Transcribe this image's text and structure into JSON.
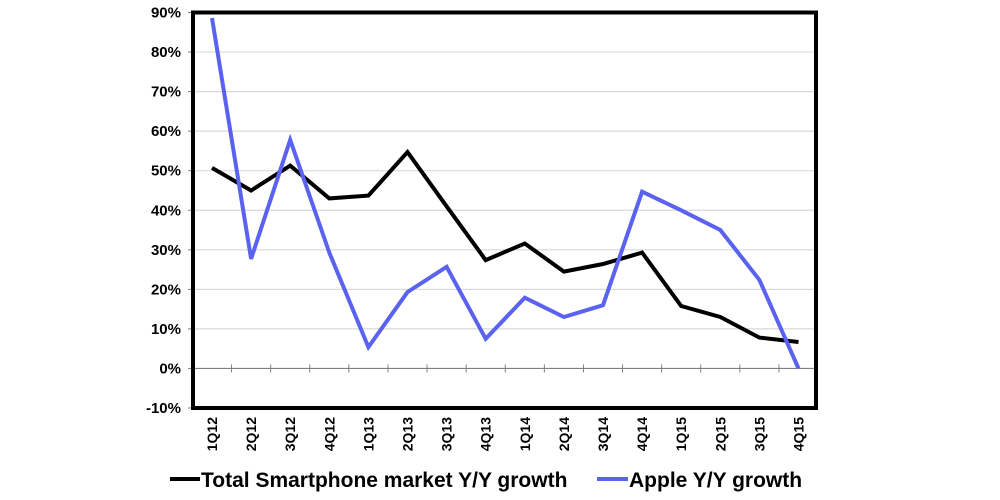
{
  "chart_data": {
    "type": "line",
    "title": "",
    "xlabel": "",
    "ylabel": "",
    "ylim": [
      -10,
      90
    ],
    "yticks": [
      90,
      80,
      70,
      60,
      50,
      40,
      30,
      20,
      10,
      0,
      -10
    ],
    "ytick_labels": [
      "90%",
      "80%",
      "70%",
      "60%",
      "50%",
      "40%",
      "30%",
      "20%",
      "10%",
      "0%",
      "-10%"
    ],
    "grid": "horizontal",
    "legend_position": "bottom",
    "categories": [
      "1Q12",
      "2Q12",
      "3Q12",
      "4Q12",
      "1Q13",
      "2Q13",
      "3Q13",
      "4Q13",
      "1Q14",
      "2Q14",
      "3Q14",
      "4Q14",
      "1Q15",
      "2Q15",
      "3Q15",
      "4Q15"
    ],
    "series": [
      {
        "name": "Total Smartphone market Y/Y growth",
        "color": "#000000",
        "values": [
          50.7,
          45.0,
          51.3,
          43.0,
          43.7,
          54.7,
          41.0,
          27.4,
          31.6,
          24.5,
          26.4,
          29.3,
          15.8,
          13.0,
          7.8,
          6.7
        ]
      },
      {
        "name": "Apple Y/Y growth",
        "color": "#5A62F0",
        "values": [
          88.6,
          27.7,
          57.8,
          29.3,
          5.4,
          19.3,
          25.7,
          7.5,
          17.9,
          13.0,
          16.0,
          44.7,
          40.0,
          35.0,
          22.4,
          0.0
        ]
      }
    ]
  }
}
